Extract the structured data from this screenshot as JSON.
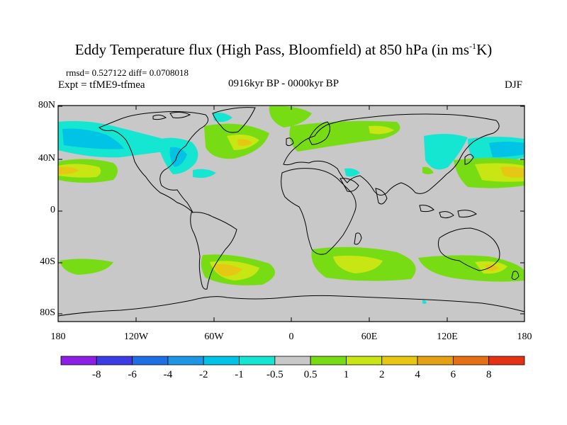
{
  "title": "Eddy Temperature flux (High Pass, Bloomfield) at 850 hPa (in ms",
  "title_sup": "-1",
  "title_end": "K)",
  "stats": "rmsd= 0.527122 diff= 0.0708018",
  "experiment": "Expt = tfME9-tfmea",
  "period": "0916kyr BP - 0000kyr BP",
  "season": "DJF",
  "lat_ticks": [
    "80N",
    "40N",
    "0",
    "40S",
    "80S"
  ],
  "lon_ticks": [
    "180",
    "120W",
    "60W",
    "0",
    "60E",
    "120E",
    "180"
  ],
  "colorbar": {
    "labels": [
      "-8",
      "-6",
      "-4",
      "-2",
      "-1",
      "-0.5",
      "0.5",
      "1",
      "2",
      "4",
      "6",
      "8"
    ],
    "colors": [
      "#8c1ee6",
      "#3c3ce6",
      "#1e6ee6",
      "#1e96e6",
      "#00c3e6",
      "#14e6d2",
      "#c8c8c8",
      "#78dc14",
      "#c8e614",
      "#e6c814",
      "#e6a014",
      "#e66e14",
      "#e63214"
    ]
  },
  "map_colors": {
    "ocean_land": "#c8c8c8",
    "coast": "#000000"
  }
}
